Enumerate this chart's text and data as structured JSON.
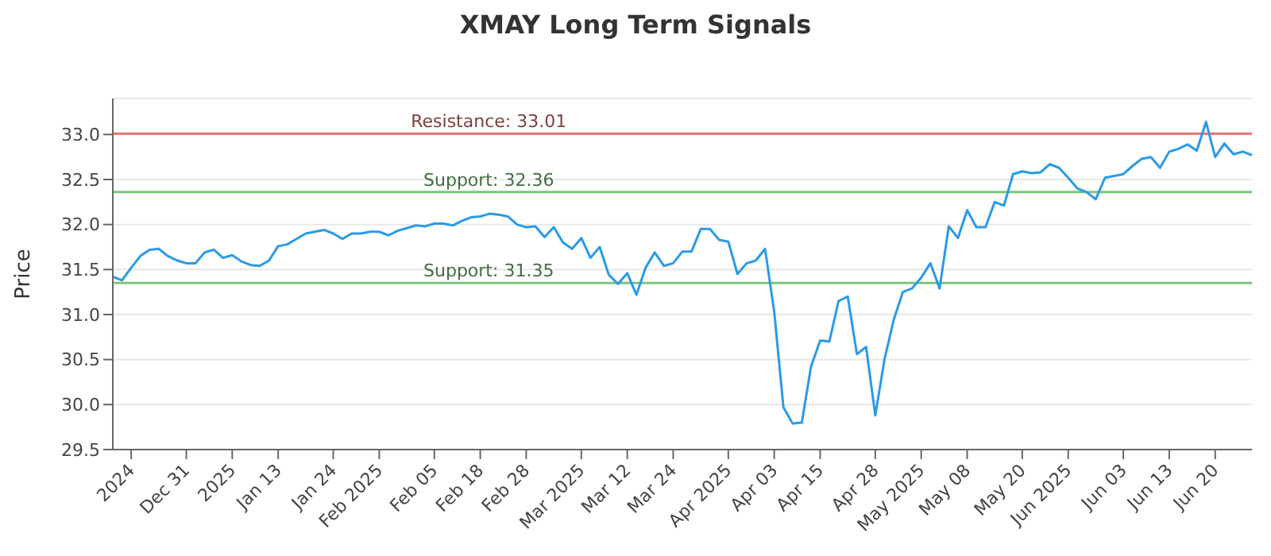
{
  "chart_data": {
    "type": "line",
    "title": "XMAY Long Term Signals",
    "ylabel": "Price",
    "categories": [
      null,
      null,
      "2024",
      null,
      null,
      null,
      null,
      null,
      "Dec 31",
      null,
      null,
      null,
      null,
      "2025",
      null,
      null,
      null,
      null,
      "Jan 13",
      null,
      null,
      null,
      null,
      null,
      "Jan 24",
      null,
      null,
      null,
      null,
      "Feb 2025",
      null,
      null,
      null,
      null,
      null,
      "Feb 05",
      null,
      null,
      null,
      null,
      "Feb 18",
      null,
      null,
      null,
      null,
      "Feb 28",
      null,
      null,
      null,
      null,
      null,
      "Mar 2025",
      null,
      null,
      null,
      null,
      "Mar 12",
      null,
      null,
      null,
      null,
      "Mar 24",
      null,
      null,
      null,
      null,
      null,
      "Apr 2025",
      null,
      null,
      null,
      null,
      "Apr 03",
      null,
      null,
      null,
      null,
      "Apr 15",
      null,
      null,
      null,
      null,
      null,
      "Apr 28",
      null,
      null,
      null,
      null,
      "May 2025",
      null,
      null,
      null,
      null,
      "May 08",
      null,
      null,
      null,
      null,
      null,
      "May 20",
      null,
      null,
      null,
      null,
      "Jun 2025",
      null,
      null,
      null,
      null,
      null,
      "Jun 03",
      null,
      null,
      null,
      null,
      "Jun 13",
      null,
      null,
      null,
      null,
      "Jun 20",
      null,
      null,
      null,
      null
    ],
    "series": [
      {
        "color": "#2b9ae6",
        "values": [
          31.42,
          31.38,
          31.52,
          31.65,
          31.72,
          31.73,
          31.65,
          31.6,
          31.57,
          31.57,
          31.69,
          31.72,
          31.63,
          31.66,
          31.59,
          31.55,
          31.54,
          31.6,
          31.76,
          31.78,
          31.84,
          31.9,
          31.92,
          31.94,
          31.9,
          31.84,
          31.9,
          31.9,
          31.92,
          31.92,
          31.88,
          31.93,
          31.96,
          31.99,
          31.98,
          32.01,
          32.01,
          31.99,
          32.04,
          32.08,
          32.09,
          32.12,
          32.11,
          32.09,
          32.0,
          31.97,
          31.98,
          31.86,
          31.97,
          31.8,
          31.73,
          31.85,
          31.63,
          31.75,
          31.44,
          31.34,
          31.46,
          31.22,
          31.52,
          31.69,
          31.54,
          31.57,
          31.7,
          31.7,
          31.95,
          31.95,
          31.83,
          31.81,
          31.45,
          31.57,
          31.6,
          31.73,
          31.03,
          29.97,
          29.79,
          29.8,
          30.42,
          30.71,
          30.7,
          31.15,
          31.2,
          30.56,
          30.64,
          29.88,
          30.5,
          30.94,
          31.25,
          31.29,
          31.41,
          31.57,
          31.29,
          31.98,
          31.85,
          32.16,
          31.97,
          31.97,
          32.25,
          32.21,
          32.56,
          32.59,
          32.57,
          32.58,
          32.67,
          32.63,
          32.52,
          32.4,
          32.36,
          32.28,
          32.52,
          32.54,
          32.56,
          32.65,
          32.73,
          32.75,
          32.63,
          32.81,
          32.84,
          32.89,
          32.82,
          33.14,
          32.75,
          32.9,
          32.78,
          32.81,
          32.77
        ]
      }
    ],
    "ylim": [
      29.5,
      33.4
    ],
    "yticks": [
      29.5,
      {
        "value": 30,
        "label": "30.0"
      },
      30.5,
      {
        "value": 31,
        "label": "31.0"
      },
      31.5,
      {
        "value": 32,
        "label": "32.0"
      },
      32.5,
      {
        "value": 33,
        "label": "33.0"
      }
    ],
    "grid": "y",
    "marker": "none",
    "line_style": "solid",
    "ref_lines": [
      {
        "axis": "y",
        "value": 33.01,
        "label": "Resistance: 33.01",
        "color": "#e57373"
      },
      {
        "axis": "y",
        "value": 32.36,
        "label": "Support: 32.36",
        "color": "#7cc47c"
      },
      {
        "axis": "y",
        "value": 31.35,
        "label": "Support: 31.35",
        "color": "#7cc47c"
      }
    ]
  }
}
